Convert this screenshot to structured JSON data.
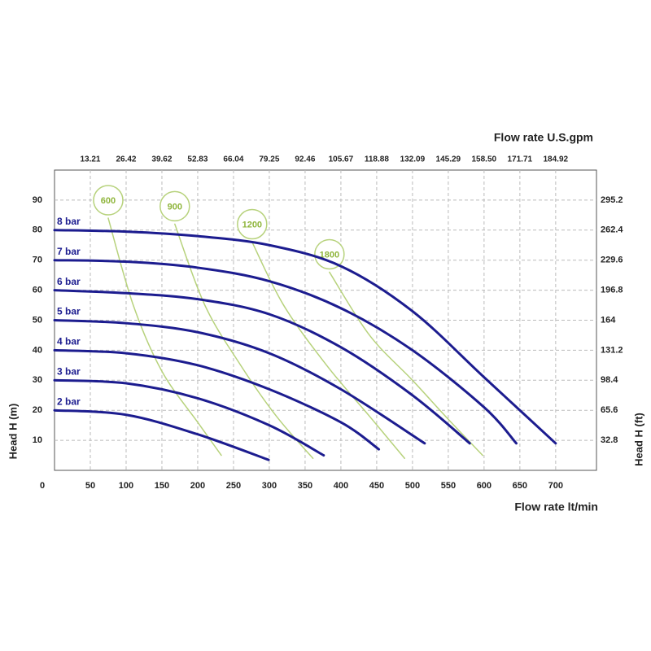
{
  "chart_data": {
    "type": "line",
    "x_label": "Flow rate  lt/min",
    "x2_label": "Flow rate U.S.gpm",
    "y_label": "Head H (m)",
    "y2_label": "Head H (ft)",
    "xlim": [
      0,
      757
    ],
    "xticks": [
      0,
      50,
      100,
      150,
      200,
      250,
      300,
      350,
      400,
      450,
      500,
      550,
      600,
      650,
      700
    ],
    "x2lim": [
      0,
      200
    ],
    "x2ticks": [
      13.21,
      26.42,
      39.62,
      52.83,
      66.04,
      79.25,
      92.46,
      105.67,
      118.88,
      132.09,
      145.29,
      {
        "value": 158.5,
        "label": "158.50"
      },
      171.71,
      184.92
    ],
    "ylim": [
      0,
      100
    ],
    "yticks": [
      10,
      20,
      30,
      40,
      50,
      60,
      70,
      80,
      90
    ],
    "y2lim": [
      0,
      328
    ],
    "y2ticks": [
      32.8,
      65.6,
      98.4,
      131.2,
      164,
      196.8,
      229.6,
      262.4,
      295.2
    ],
    "grid": true,
    "series": [
      {
        "name": "8 bar",
        "color": "#1c1c8f",
        "x": [
          0,
          100,
          200,
          300,
          400,
          500,
          600,
          700
        ],
        "values": [
          80,
          79.5,
          78,
          75,
          68,
          53,
          31,
          9
        ]
      },
      {
        "name": "7 bar",
        "color": "#1c1c8f",
        "x": [
          0,
          100,
          200,
          300,
          400,
          500,
          600,
          645
        ],
        "values": [
          70,
          69.5,
          67.5,
          63,
          54,
          40,
          21,
          9
        ]
      },
      {
        "name": "6 bar",
        "color": "#1c1c8f",
        "x": [
          0,
          100,
          200,
          300,
          400,
          500,
          580
        ],
        "values": [
          60,
          59,
          57,
          52,
          41,
          25,
          9
        ]
      },
      {
        "name": "5 bar",
        "color": "#1c1c8f",
        "x": [
          0,
          100,
          200,
          300,
          400,
          517
        ],
        "values": [
          50,
          49,
          46,
          39,
          27,
          9
        ]
      },
      {
        "name": "4 bar",
        "color": "#1c1c8f",
        "x": [
          0,
          100,
          200,
          300,
          400,
          453
        ],
        "values": [
          40,
          39,
          35,
          27,
          16,
          7
        ]
      },
      {
        "name": "3 bar",
        "color": "#1c1c8f",
        "x": [
          0,
          100,
          200,
          300,
          376
        ],
        "values": [
          30,
          29,
          24,
          15,
          5
        ]
      },
      {
        "name": "2 bar",
        "color": "#1c1c8f",
        "x": [
          0,
          100,
          200,
          299
        ],
        "values": [
          20,
          18.5,
          12,
          3.5
        ]
      }
    ],
    "consumption_curves": [
      {
        "name": "600",
        "color": "#b7d27c",
        "x": [
          75,
          110,
          150,
          200,
          233
        ],
        "values": [
          84,
          55,
          33,
          16,
          5
        ]
      },
      {
        "name": "900",
        "color": "#b7d27c",
        "x": [
          168,
          210,
          260,
          310,
          361
        ],
        "values": [
          82,
          55,
          35,
          18,
          4
        ]
      },
      {
        "name": "1200",
        "color": "#b7d27c",
        "x": [
          276,
          320,
          380,
          440,
          489
        ],
        "values": [
          76,
          55,
          35,
          18,
          4
        ]
      },
      {
        "name": "1800",
        "color": "#b7d27c",
        "x": [
          384,
          440,
          500,
          550,
          598
        ],
        "values": [
          66,
          45,
          30,
          17,
          5
        ]
      }
    ]
  }
}
